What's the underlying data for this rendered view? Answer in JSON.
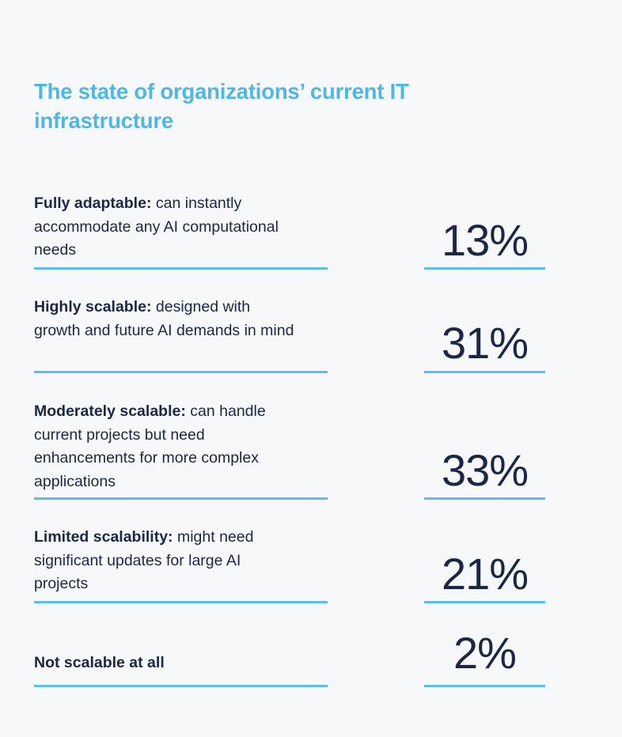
{
  "title": "The state of organizations’ current IT infrastructure",
  "chart_data": {
    "type": "table",
    "title": "The state of organizations’ current IT infrastructure",
    "unit": "%",
    "rows": [
      {
        "category": "Fully adaptable:",
        "description": "can instantly accommodate any AI computational needs",
        "value": 13,
        "display": "13%"
      },
      {
        "category": "Highly scalable:",
        "description": "designed with growth and future AI demands in mind",
        "value": 31,
        "display": "31%"
      },
      {
        "category": "Moderately scalable:",
        "description": "can handle current projects but need enhancements for more complex applications",
        "value": 33,
        "display": "33%"
      },
      {
        "category": "Limited scalability:",
        "description": "might need significant updates for large AI projects",
        "value": 21,
        "display": "21%"
      },
      {
        "category": "Not scalable at all",
        "description": "",
        "value": 2,
        "display": "2%"
      }
    ]
  },
  "colors": {
    "accent": "#5fbde9",
    "title": "#4fb6e6",
    "text": "#1b2744",
    "background": "#f7f8f9"
  }
}
